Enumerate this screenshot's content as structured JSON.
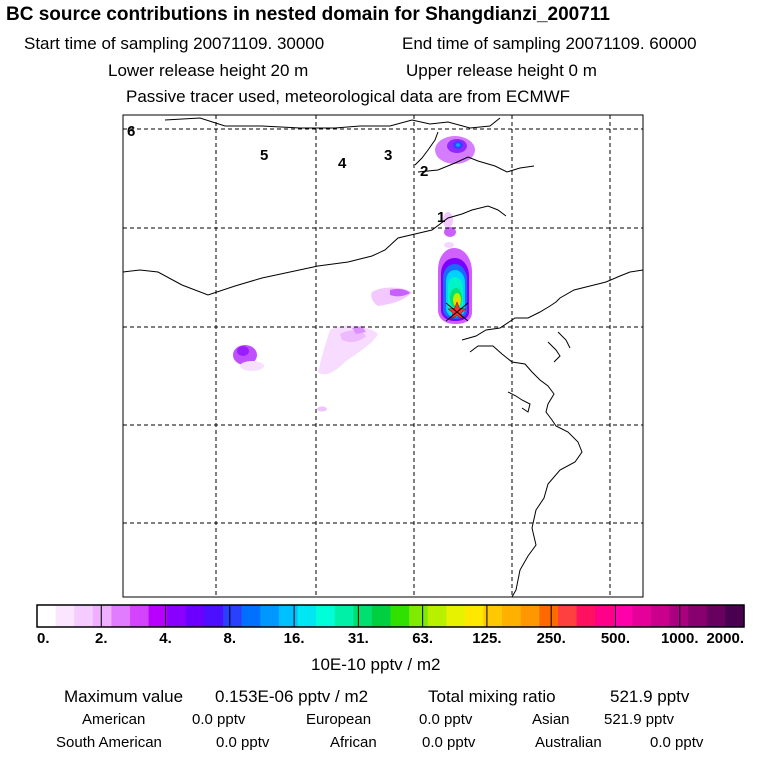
{
  "title": "BC  source contributions in nested domain for Shangdianzi_200711",
  "sampling": {
    "start": "Start time of sampling 20071109. 30000",
    "end": "End time of sampling 20071109. 60000"
  },
  "release": {
    "lower": "Lower release height   20 m",
    "upper": "Upper release height    0 m"
  },
  "tracer_note": "Passive tracer used, meteorological data are from ECMWF",
  "map": {
    "time_markers": [
      "1",
      "2",
      "3",
      "4",
      "5",
      "6"
    ],
    "receptor_marker": "star-icon"
  },
  "legend": {
    "levels": [
      "0.",
      "2.",
      "4.",
      "8.",
      "16.",
      "31.",
      "63.",
      "125.",
      "250.",
      "500.",
      "1000.",
      "2000."
    ],
    "unit": "10E-10 pptv / m2",
    "colors": [
      "#ffffff",
      "#fbe6ff",
      "#f5ccff",
      "#eeb0ff",
      "#e27cff",
      "#d444ff",
      "#b800ff",
      "#8a00ff",
      "#6b00ff",
      "#4a10ff",
      "#2a40ff",
      "#0070ff",
      "#0098ff",
      "#00c0ff",
      "#00e6f2",
      "#00ffd8",
      "#00f0a8",
      "#00e070",
      "#00d040",
      "#30e000",
      "#80ea00",
      "#b8f000",
      "#e6f200",
      "#ffe800",
      "#ffc800",
      "#ffb000",
      "#ff9800",
      "#ff6a00",
      "#ff4040",
      "#ff1060",
      "#ff0088",
      "#ff00aa",
      "#e6009a",
      "#c8008c",
      "#a8007e",
      "#880070",
      "#680060",
      "#4a0050"
    ]
  },
  "summary": {
    "max_label": "Maximum value",
    "max_value": "0.153E-06 pptv / m2",
    "total_label": "Total mixing ratio",
    "total_value": "521.9 pptv",
    "regions": [
      {
        "name": "American",
        "value": "0.0 pptv"
      },
      {
        "name": "European",
        "value": "0.0 pptv"
      },
      {
        "name": "Asian",
        "value": "521.9 pptv"
      },
      {
        "name": "South American",
        "value": "0.0 pptv"
      },
      {
        "name": "African",
        "value": "0.0 pptv"
      },
      {
        "name": "Australian",
        "value": "0.0 pptv"
      }
    ]
  }
}
